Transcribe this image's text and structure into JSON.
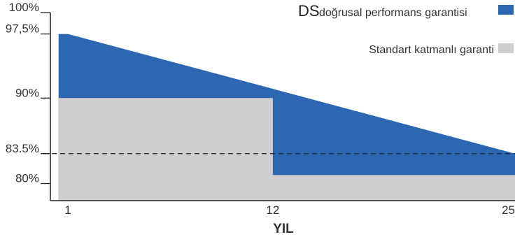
{
  "chart_data": {
    "type": "area",
    "xlabel": "YIL",
    "ylabel": "",
    "xlim": [
      0.5,
      25
    ],
    "ylim": [
      78,
      100
    ],
    "x_ticks": [
      1,
      12,
      25
    ],
    "y_ticks": [
      {
        "value": 100,
        "label": "100%"
      },
      {
        "value": 97.5,
        "label": "97,5%"
      },
      {
        "value": 90,
        "label": "90%"
      },
      {
        "value": 83.5,
        "label": "83.5%"
      },
      {
        "value": 80,
        "label": "80%"
      }
    ],
    "reference_line": {
      "value": 83.5,
      "style": "dashed"
    },
    "legend_position": "top-right",
    "series": [
      {
        "name": "DS doğrusal performans garantisi",
        "legend_prefix": "DS",
        "legend_text": "doğrusal performans garantisi",
        "color": "#2e67b1",
        "points": [
          [
            0.5,
            97.5
          ],
          [
            1,
            97.5
          ],
          [
            25,
            83.5
          ]
        ]
      },
      {
        "name": "Standart katmanlı garanti",
        "legend_text": "Standart katmanlı garanti",
        "color": "#d0cdd0",
        "points": [
          [
            0.5,
            90
          ],
          [
            12,
            90
          ],
          [
            12,
            81
          ],
          [
            25,
            81
          ]
        ]
      }
    ]
  }
}
